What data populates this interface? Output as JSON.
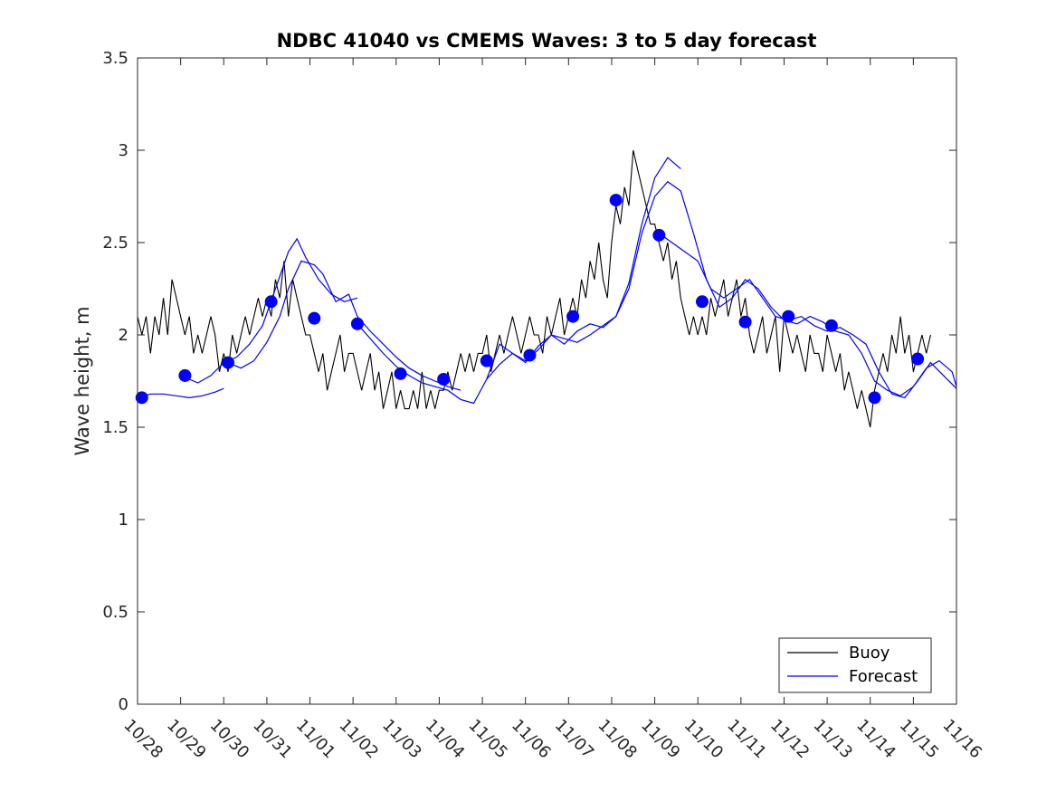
{
  "chart_data": {
    "type": "line",
    "title": "NDBC 41040 vs CMEMS Waves: 3 to 5 day forecast",
    "xlabel": "",
    "ylabel": "Wave height, m",
    "xlim": [
      0,
      19
    ],
    "ylim": [
      0,
      3.5
    ],
    "x_tick_labels": [
      "10/28",
      "10/29",
      "10/30",
      "10/31",
      "11/01",
      "11/02",
      "11/03",
      "11/04",
      "11/05",
      "11/06",
      "11/07",
      "11/08",
      "11/09",
      "11/10",
      "11/11",
      "11/12",
      "11/13",
      "11/14",
      "11/15",
      "11/16"
    ],
    "y_ticks": [
      0,
      0.5,
      1,
      1.5,
      2,
      2.5,
      3,
      3.5
    ],
    "y_tick_labels": [
      "0",
      "0.5",
      "1",
      "1.5",
      "2",
      "2.5",
      "3",
      "3.5"
    ],
    "legend": {
      "location": "bottom-right",
      "entries": [
        "Buoy",
        "Forecast"
      ]
    },
    "colors": {
      "buoy": "#000000",
      "forecast": "#0000ff",
      "markers": "#0000ff"
    },
    "series": [
      {
        "name": "Buoy",
        "x": [
          0.0,
          0.1,
          0.2,
          0.3,
          0.4,
          0.5,
          0.6,
          0.7,
          0.8,
          0.9,
          1.0,
          1.1,
          1.2,
          1.3,
          1.4,
          1.5,
          1.6,
          1.7,
          1.8,
          1.9,
          2.0,
          2.1,
          2.2,
          2.3,
          2.4,
          2.5,
          2.6,
          2.7,
          2.8,
          2.9,
          3.0,
          3.1,
          3.2,
          3.3,
          3.4,
          3.5,
          3.6,
          3.7,
          3.8,
          3.9,
          4.0,
          4.1,
          4.2,
          4.3,
          4.4,
          4.5,
          4.6,
          4.7,
          4.8,
          4.9,
          5.0,
          5.1,
          5.2,
          5.3,
          5.4,
          5.5,
          5.6,
          5.7,
          5.8,
          5.9,
          6.0,
          6.1,
          6.2,
          6.3,
          6.4,
          6.5,
          6.6,
          6.7,
          6.8,
          6.9,
          7.0,
          7.1,
          7.2,
          7.3,
          7.4,
          7.5,
          7.6,
          7.7,
          7.8,
          7.9,
          8.0,
          8.1,
          8.2,
          8.3,
          8.4,
          8.5,
          8.6,
          8.7,
          8.8,
          8.9,
          9.0,
          9.1,
          9.2,
          9.3,
          9.4,
          9.5,
          9.6,
          9.7,
          9.8,
          9.9,
          10.0,
          10.1,
          10.2,
          10.3,
          10.4,
          10.5,
          10.6,
          10.7,
          10.8,
          10.9,
          11.0,
          11.1,
          11.2,
          11.3,
          11.4,
          11.5,
          11.6,
          11.7,
          11.8,
          11.9,
          12.0,
          12.1,
          12.2,
          12.3,
          12.4,
          12.5,
          12.6,
          12.7,
          12.8,
          12.9,
          13.0,
          13.1,
          13.2,
          13.3,
          13.4,
          13.5,
          13.6,
          13.7,
          13.8,
          13.9,
          14.0,
          14.1,
          14.2,
          14.3,
          14.4,
          14.5,
          14.6,
          14.7,
          14.8,
          14.9,
          15.0,
          15.1,
          15.2,
          15.3,
          15.4,
          15.5,
          15.6,
          15.7,
          15.8,
          15.9,
          16.0,
          16.1,
          16.2,
          16.3,
          16.4,
          16.5,
          16.6,
          16.7,
          16.8,
          16.9,
          17.0,
          17.1,
          17.2,
          17.3,
          17.4,
          17.5,
          17.6,
          17.7,
          17.8,
          17.9,
          18.0,
          18.1,
          18.2,
          18.3,
          18.4
        ],
        "values": [
          2.1,
          2.0,
          2.1,
          1.9,
          2.1,
          2.0,
          2.2,
          2.0,
          2.3,
          2.2,
          2.1,
          2.0,
          2.1,
          1.9,
          2.0,
          1.9,
          2.0,
          2.1,
          2.0,
          1.8,
          1.9,
          1.8,
          2.0,
          1.9,
          2.0,
          2.1,
          2.0,
          2.1,
          2.2,
          2.1,
          2.2,
          2.1,
          2.3,
          2.2,
          2.4,
          2.1,
          2.3,
          2.2,
          2.1,
          2.0,
          2.0,
          1.9,
          1.8,
          1.9,
          1.7,
          1.8,
          1.9,
          2.0,
          1.8,
          1.9,
          1.9,
          1.8,
          1.7,
          1.8,
          1.9,
          1.7,
          1.8,
          1.6,
          1.7,
          1.8,
          1.6,
          1.7,
          1.6,
          1.6,
          1.7,
          1.6,
          1.8,
          1.6,
          1.7,
          1.6,
          1.7,
          1.7,
          1.8,
          1.7,
          1.8,
          1.9,
          1.8,
          1.9,
          1.8,
          1.9,
          1.9,
          2.0,
          1.8,
          1.9,
          2.0,
          1.9,
          2.0,
          2.1,
          2.0,
          1.9,
          2.0,
          2.1,
          2.0,
          2.0,
          1.9,
          2.1,
          2.0,
          2.1,
          2.2,
          2.0,
          2.1,
          2.2,
          2.1,
          2.3,
          2.2,
          2.4,
          2.3,
          2.5,
          2.3,
          2.2,
          2.5,
          2.7,
          2.6,
          2.8,
          2.7,
          3.0,
          2.9,
          2.8,
          2.7,
          2.6,
          2.6,
          2.5,
          2.4,
          2.5,
          2.3,
          2.4,
          2.2,
          2.1,
          2.0,
          2.1,
          2.0,
          2.1,
          2.0,
          2.2,
          2.1,
          2.2,
          2.3,
          2.1,
          2.2,
          2.3,
          2.1,
          2.2,
          2.0,
          1.9,
          2.0,
          2.1,
          1.9,
          2.0,
          2.1,
          1.8,
          2.1,
          2.0,
          1.9,
          2.0,
          1.9,
          1.8,
          2.0,
          1.9,
          1.9,
          1.8,
          2.0,
          1.9,
          1.8,
          1.9,
          1.7,
          1.8,
          1.7,
          1.6,
          1.7,
          1.6,
          1.5,
          1.7,
          1.8,
          1.9,
          1.8,
          2.0,
          1.9,
          2.1,
          1.9,
          2.0,
          1.8,
          1.9,
          2.0,
          1.9,
          2.0
        ]
      },
      {
        "name": "Forecast",
        "segments": [
          {
            "x": [
              0.0,
              0.3,
              0.6,
              0.9,
              1.2,
              1.5,
              1.8,
              2.0
            ],
            "values": [
              1.66,
              1.68,
              1.68,
              1.67,
              1.66,
              1.67,
              1.69,
              1.71
            ]
          },
          {
            "x": [
              1.1,
              1.4,
              1.7,
              2.0,
              2.3,
              2.6,
              2.9,
              3.2,
              3.5,
              3.7,
              3.9,
              4.2,
              4.5,
              4.8,
              5.1
            ],
            "values": [
              1.77,
              1.74,
              1.78,
              1.85,
              1.88,
              1.95,
              2.05,
              2.25,
              2.45,
              2.52,
              2.42,
              2.3,
              2.22,
              2.18,
              2.2
            ]
          },
          {
            "x": [
              2.1,
              2.4,
              2.7,
              3.0,
              3.3,
              3.5,
              3.8,
              4.1,
              4.3,
              4.6,
              4.9,
              5.1,
              5.4,
              5.7,
              6.0,
              6.3,
              6.6,
              6.9,
              7.2,
              7.5
            ],
            "values": [
              1.85,
              1.82,
              1.86,
              1.96,
              2.1,
              2.25,
              2.4,
              2.38,
              2.33,
              2.18,
              2.22,
              2.1,
              2.02,
              1.95,
              1.88,
              1.82,
              1.78,
              1.75,
              1.72,
              1.7
            ]
          },
          {
            "x": [
              5.1,
              5.4,
              5.7,
              6.0,
              6.3,
              6.6,
              6.9,
              7.2,
              7.5,
              7.8,
              8.1,
              8.4,
              8.7,
              9.0,
              9.3,
              9.6,
              9.9,
              10.2,
              10.5,
              10.8,
              11.1,
              11.4,
              11.7,
              12.0,
              12.3,
              12.6
            ],
            "values": [
              2.06,
              1.98,
              1.9,
              1.83,
              1.78,
              1.74,
              1.72,
              1.7,
              1.65,
              1.63,
              1.76,
              1.95,
              1.9,
              1.85,
              1.94,
              2.0,
              1.98,
              1.96,
              2.0,
              2.05,
              2.1,
              2.28,
              2.6,
              2.85,
              2.96,
              2.9
            ]
          },
          {
            "x": [
              8.1,
              8.4,
              8.7,
              9.0,
              9.3,
              9.6,
              9.9,
              10.2,
              10.5,
              10.8,
              11.1,
              11.4,
              11.7,
              12.0,
              12.3,
              12.6,
              12.9,
              13.2,
              13.5,
              13.8,
              14.1,
              14.4,
              14.7,
              15.0,
              15.3,
              15.6,
              15.9,
              16.2,
              16.5,
              16.8,
              17.1,
              17.4,
              17.7,
              18.0,
              18.3,
              18.6,
              18.9,
              19.0
            ],
            "values": [
              1.76,
              1.84,
              1.9,
              1.86,
              1.92,
              2.0,
              1.95,
              2.02,
              2.06,
              2.04,
              2.1,
              2.25,
              2.55,
              2.75,
              2.83,
              2.78,
              2.55,
              2.3,
              2.15,
              2.2,
              2.3,
              2.25,
              2.15,
              2.08,
              2.06,
              2.1,
              2.07,
              2.02,
              2.0,
              1.9,
              1.75,
              1.7,
              1.67,
              1.72,
              1.82,
              1.86,
              1.8,
              1.72
            ]
          },
          {
            "x": [
              12.1,
              12.4,
              12.7,
              13.0,
              13.3,
              13.6,
              13.9,
              14.2,
              14.5,
              14.8,
              15.1,
              15.4,
              15.7,
              16.0,
              16.3,
              16.6,
              16.9,
              17.2,
              17.5,
              17.8,
              18.1,
              18.4,
              18.7,
              19.0
            ],
            "values": [
              2.55,
              2.5,
              2.45,
              2.4,
              2.25,
              2.2,
              2.25,
              2.3,
              2.2,
              2.1,
              2.08,
              2.1,
              2.05,
              2.02,
              2.04,
              2.0,
              1.95,
              1.8,
              1.68,
              1.66,
              1.75,
              1.85,
              1.78,
              1.71
            ]
          }
        ]
      },
      {
        "name": "Forecast markers",
        "x": [
          0.1,
          1.1,
          2.1,
          3.1,
          4.1,
          5.1,
          6.1,
          7.1,
          8.1,
          9.1,
          10.1,
          11.1,
          12.1,
          13.1,
          14.1,
          15.1,
          16.1,
          17.1,
          18.1
        ],
        "values": [
          1.66,
          1.78,
          1.85,
          2.18,
          2.09,
          2.06,
          1.79,
          1.76,
          1.86,
          1.89,
          2.1,
          2.73,
          2.54,
          2.18,
          2.07,
          2.1,
          2.05,
          1.66,
          1.87
        ]
      }
    ]
  }
}
